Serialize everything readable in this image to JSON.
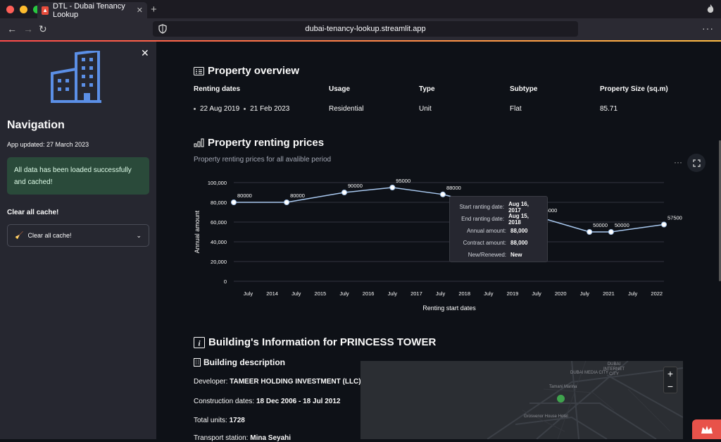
{
  "browser": {
    "tab_title": "DTL - Dubai Tenancy Lookup",
    "url": "dubai-tenancy-lookup.streamlit.app"
  },
  "sidebar": {
    "title": "Navigation",
    "updated": "App updated: 27 March 2023",
    "alert": "All data has been loaded successfully and cached!",
    "cache_label": "Clear all cache!",
    "expander_label": "Clear all cache!"
  },
  "overview": {
    "heading": "Property overview",
    "columns": [
      {
        "header": "Renting dates",
        "value": ""
      },
      {
        "header": "Usage",
        "value": "Residential"
      },
      {
        "header": "Type",
        "value": "Unit"
      },
      {
        "header": "Subtype",
        "value": "Flat"
      },
      {
        "header": "Property Size (sq.m)",
        "value": "85.71"
      }
    ],
    "date_start": "22 Aug 2019",
    "date_end": "21 Feb 2023"
  },
  "prices": {
    "heading": "Property renting prices",
    "subtitle": "Property renting prices for all avalible period",
    "menu_dots": "···"
  },
  "chart_data": {
    "type": "line",
    "xlabel": "Renting start dates",
    "ylabel": "Annual amount",
    "ylim": [
      0,
      100000
    ],
    "y_ticks": [
      "0",
      "20,000",
      "40,000",
      "60,000",
      "80,000",
      "100,000"
    ],
    "x_ticks": [
      "July",
      "2014",
      "July",
      "2015",
      "July",
      "2016",
      "July",
      "2017",
      "July",
      "2018",
      "July",
      "2019",
      "July",
      "2020",
      "July",
      "2021",
      "July",
      "2022"
    ],
    "x_tick_pos": [
      2013.5,
      2014.0,
      2014.5,
      2015.0,
      2015.5,
      2016.0,
      2016.5,
      2017.0,
      2017.5,
      2018.0,
      2018.5,
      2019.0,
      2019.5,
      2020.0,
      2020.5,
      2021.0,
      2021.5,
      2022.0
    ],
    "xlim": [
      2013.2,
      2022.15
    ],
    "series": [
      {
        "x": [
          2013.2,
          2014.3,
          2015.5,
          2016.5,
          2017.55,
          2018.6,
          2019.55,
          2020.6,
          2021.05,
          2022.15
        ],
        "values": [
          80000,
          80000,
          90000,
          95000,
          88000,
          75000,
          65000,
          50000,
          50000,
          57500
        ],
        "labels": [
          "80000",
          "80000",
          "90000",
          "95000",
          "88000",
          "",
          "65000",
          "50000",
          "50000",
          "57500"
        ]
      }
    ],
    "color": "#a8c8ef"
  },
  "tooltip": {
    "rows": [
      {
        "k": "Start ranting date:",
        "v": "Aug 16, 2017"
      },
      {
        "k": "End ranting date:",
        "v": "Aug 15, 2018"
      },
      {
        "k": "Annual amount:",
        "v": "88,000"
      },
      {
        "k": "Contract amount:",
        "v": "88,000"
      },
      {
        "k": "New/Renewed:",
        "v": "New"
      }
    ]
  },
  "building": {
    "heading": "Building's Information for PRINCESS TOWER",
    "desc_title": "Building description",
    "developer_label": "Developer:",
    "developer": "TAMEER HOLDING INVESTMENT (LLC)",
    "construction_label": "Construction dates:",
    "construction": "18 Dec 2006 - 18 Jul 2012",
    "units_label": "Total units:",
    "units": "1728",
    "transport_label": "Transport station:",
    "transport": "Mina Seyahi"
  },
  "map": {
    "labels": [
      "DUBAI MEDIA CITY",
      "DUBAI INTERNET CITY",
      "Tamani Marina",
      "Grosvenor House Hotel"
    ],
    "zoom_in": "+",
    "zoom_out": "−"
  }
}
